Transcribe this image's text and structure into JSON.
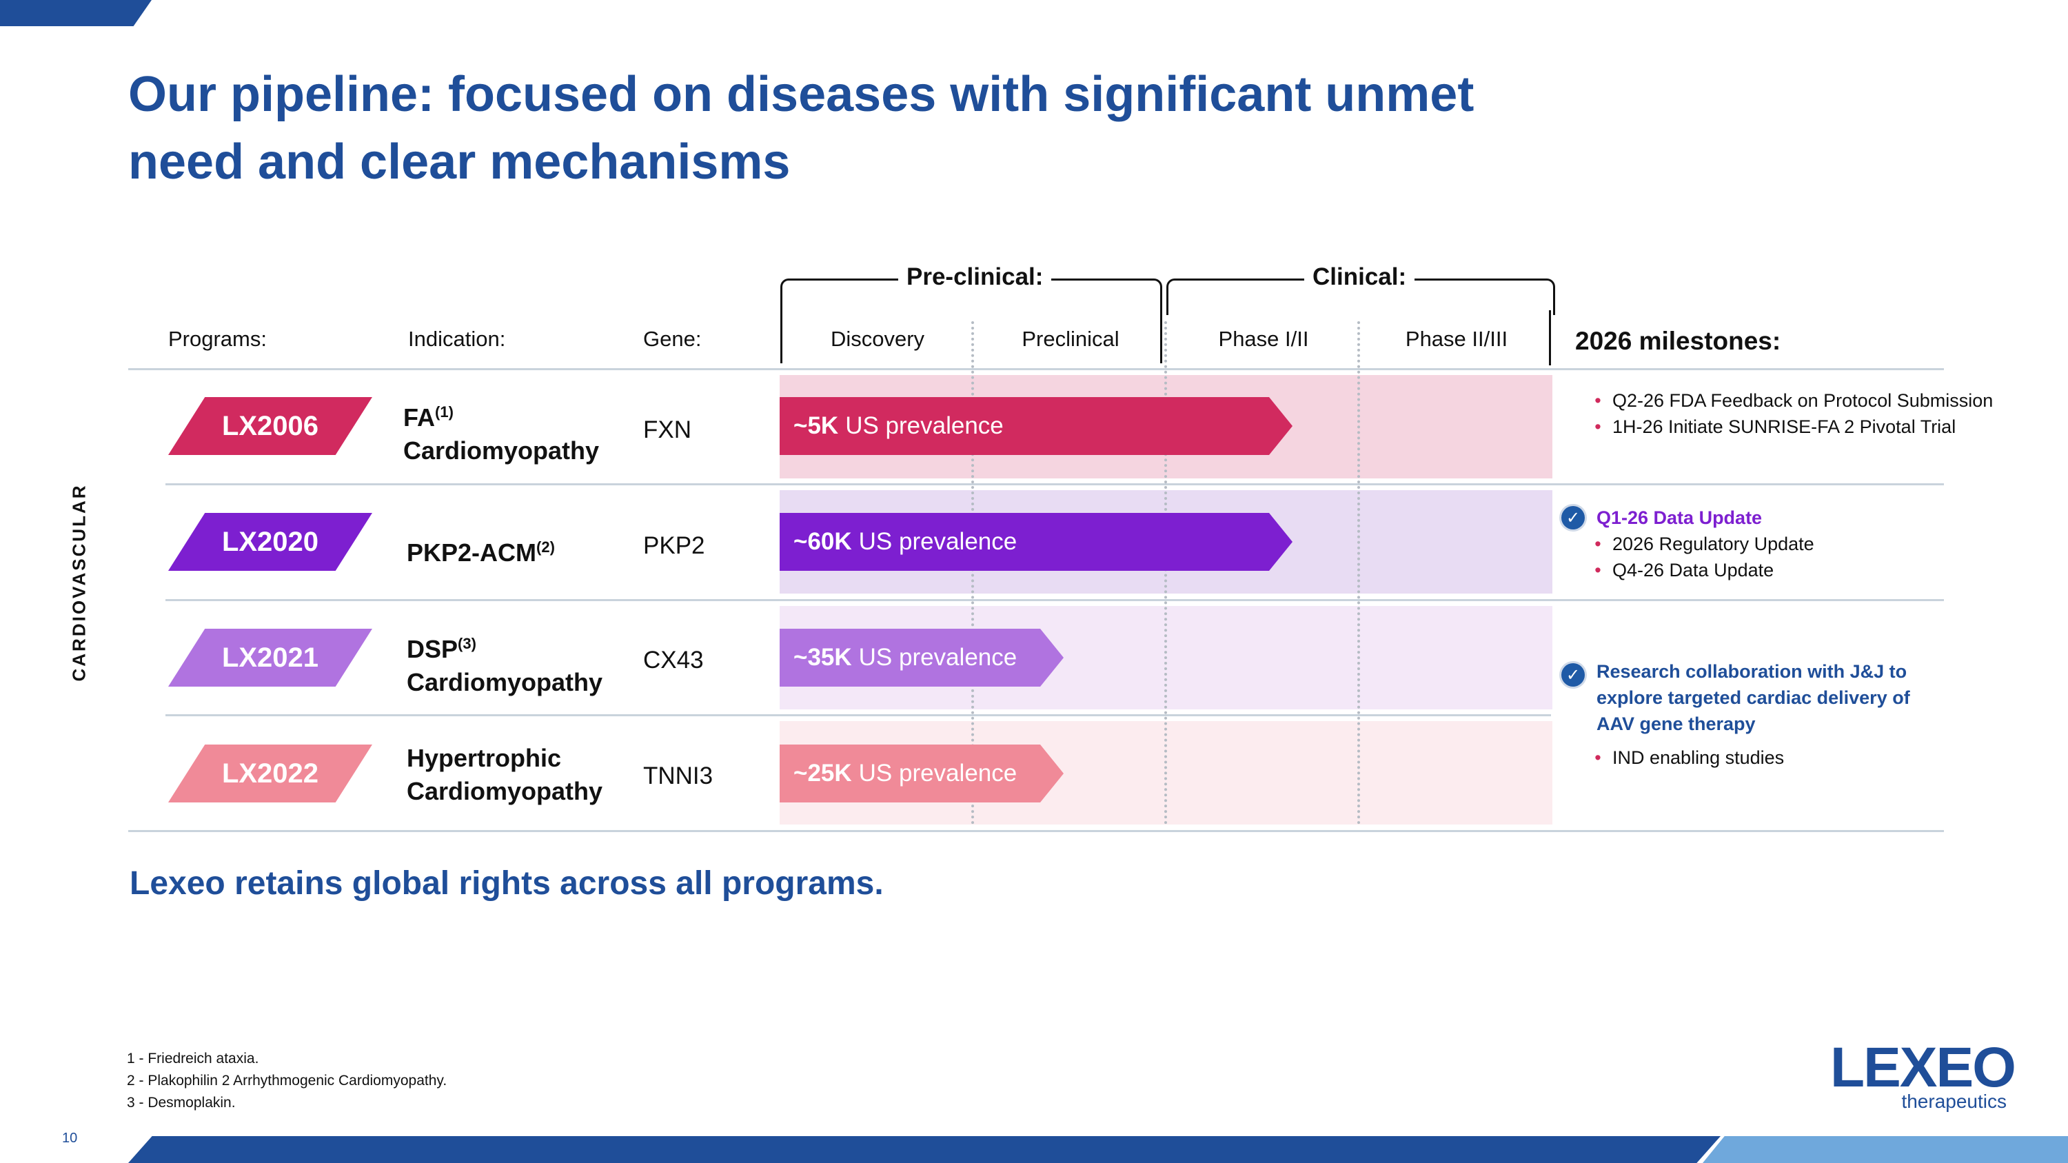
{
  "title": "Our pipeline: focused on diseases with significant unmet need and clear mechanisms",
  "columns": {
    "programs": "Programs:",
    "indication": "Indication:",
    "gene": "Gene:",
    "preclinical_group": "Pre-clinical:",
    "clinical_group": "Clinical:",
    "discovery": "Discovery",
    "preclinical": "Preclinical",
    "phase1": "Phase I/II",
    "phase2": "Phase II/III",
    "milestones": "2026 milestones:"
  },
  "category_label": "CARDIOVASCULAR",
  "programs": [
    {
      "name": "LX2006",
      "indication_line1": "FA",
      "indication_sup1": "(1)",
      "indication_line2": "Cardiomyopathy",
      "gene": "FXN",
      "prevalence_bold": "~5K",
      "prevalence_text": "US prevalence",
      "progress_phase_fraction": 0.66,
      "color": "#d12a5f",
      "band": "#f5d5e0"
    },
    {
      "name": "LX2020",
      "indication_line1": "PKP2-ACM",
      "indication_sup1": "(2)",
      "indication_line2": "",
      "gene": "PKP2",
      "prevalence_bold": "~60K",
      "prevalence_text": "US prevalence",
      "progress_phase_fraction": 0.66,
      "color": "#7d1fd0",
      "band": "#e8dcf3"
    },
    {
      "name": "LX2021",
      "indication_line1": "DSP",
      "indication_sup1": "(3)",
      "indication_line2": "Cardiomyopathy",
      "gene": "CX43",
      "prevalence_bold": "~35K",
      "prevalence_text": "US prevalence",
      "progress_phase_fraction": 0.37,
      "color": "#b073e0",
      "band": "#f4e8f8"
    },
    {
      "name": "LX2022",
      "indication_line1": "Hypertrophic",
      "indication_sup1": "",
      "indication_line2": "Cardiomyopathy",
      "gene": "TNNI3",
      "prevalence_bold": "~25K",
      "prevalence_text": "US prevalence",
      "progress_phase_fraction": 0.37,
      "color": "#f08a98",
      "band": "#fcecef"
    }
  ],
  "milestones": {
    "row1": [
      "Q2-26 FDA Feedback on Protocol Submission",
      "1H-26 Initiate SUNRISE-FA 2 Pivotal Trial"
    ],
    "row2_highlight": "Q1-26 Data Update",
    "row2_highlight_color": "#7d1fd0",
    "row2": [
      "2026 Regulatory Update",
      "Q4-26 Data Update"
    ],
    "row34_highlight": "Research collaboration with J&J to explore targeted cardiac delivery of AAV gene therapy",
    "row34_highlight_color": "#1f4e99",
    "row34": [
      "IND enabling studies"
    ]
  },
  "bottom_note": "Lexeo retains global rights across all programs.",
  "footnotes": [
    "1 - Friedreich ataxia.",
    "2 - Plakophilin 2 Arrhythmogenic Cardiomyopathy.",
    "3 - Desmoplakin."
  ],
  "page_number": "10",
  "logo": {
    "main": "LEXEO",
    "sub": "therapeutics"
  }
}
